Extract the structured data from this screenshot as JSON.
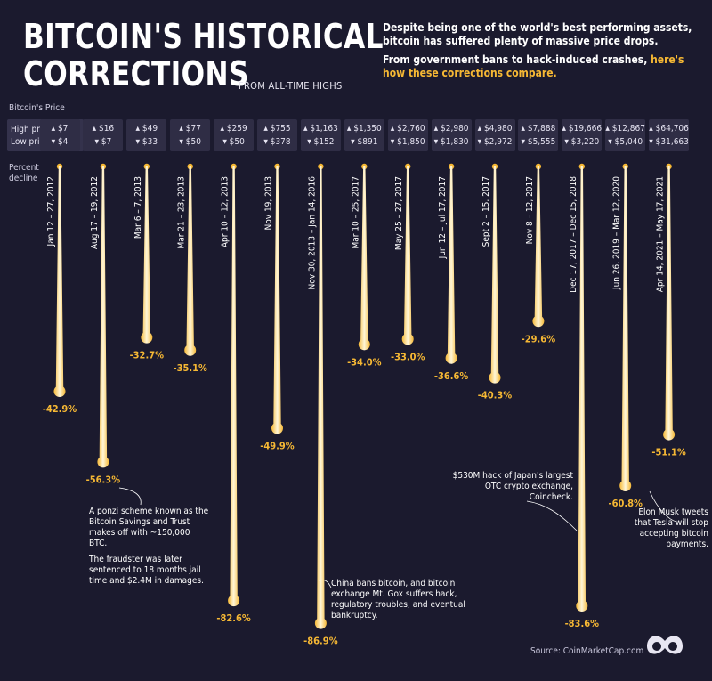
{
  "header": {
    "title_line1": "BITCOIN'S HISTORICAL",
    "title_line2": "CORRECTIONS",
    "subtitle": "FROM ALL-TIME HIGHS",
    "intro_line1": "Despite being one of the world's best performing assets, bitcoin has suffered plenty of massive price drops.",
    "intro_line2a": "From government bans to hack-induced crashes,",
    "intro_line2b": "here's how these corrections compare."
  },
  "labels": {
    "bitcoin_price": "Bitcoin's Price",
    "high_price": "High price",
    "low_price": "Low price",
    "percent": "Percent",
    "decline": "decline"
  },
  "colors": {
    "background": "#1b1a2e",
    "bar_gold": "#f6b834",
    "bar_light": "#fff6d8",
    "label_gold": "#f6b834",
    "price_box": "#2f2d45"
  },
  "chart_data": {
    "type": "bar",
    "orientation": "vertical-downward",
    "ylabel": "Percent decline",
    "ylim": [
      0,
      90
    ],
    "categories": [
      "Jan 12 – 27, 2012",
      "Aug 17 – 19, 2012",
      "Mar 6 – 7, 2013",
      "Mar 21 – 23, 2013",
      "Apr 10 – 12, 2013",
      "Nov 19, 2013",
      "Nov 30, 2013 – Jan 14, 2016",
      "Mar 10 – 25, 2017",
      "May 25 – 27, 2017",
      "Jun 12 – Jul 17, 2017",
      "Sept 2 – 15, 2017",
      "Nov 8 – 12, 2017",
      "Dec 17, 2017 – Dec 15, 2018",
      "Jun 26, 2019 – Mar 12, 2020",
      "Apr 14, 2021 – May 17, 2021"
    ],
    "values": [
      -42.9,
      -56.3,
      -32.7,
      -35.1,
      -82.6,
      -49.9,
      -86.9,
      -34.0,
      -33.0,
      -36.6,
      -40.3,
      -29.6,
      -83.6,
      -60.8,
      -51.1
    ],
    "value_labels": [
      "-42.9%",
      "-56.3%",
      "-32.7%",
      "-35.1%",
      "-82.6%",
      "-49.9%",
      "-86.9%",
      "-34.0%",
      "-33.0%",
      "-36.6%",
      "-40.3%",
      "-29.6%",
      "-83.6%",
      "-60.8%",
      "-51.1%"
    ],
    "high_price": [
      "$7",
      "$16",
      "$49",
      "$77",
      "$259",
      "$755",
      "$1,163",
      "$1,350",
      "$2,760",
      "$2,980",
      "$4,980",
      "$7,888",
      "$19,666",
      "$12,867",
      "$64,706"
    ],
    "low_price": [
      "$4",
      "$7",
      "$33",
      "$50",
      "$50",
      "$378",
      "$152",
      "$891",
      "$1,850",
      "$1,830",
      "$2,972",
      "$5,555",
      "$3,220",
      "$5,040",
      "$31,663"
    ]
  },
  "annotations": {
    "ponzi_1": "A ponzi scheme known as the Bitcoin Savings and Trust makes off with ~150,000 BTC.",
    "ponzi_2": "The fraudster was later sentenced to 18 months jail time and $2.4M in damages.",
    "gox": "China bans bitcoin, and bitcoin exchange Mt. Gox suffers hack, regulatory troubles, and eventual bankruptcy.",
    "coincheck": "$530M hack of Japan's largest OTC crypto exchange, Coincheck.",
    "musk": "Elon Musk tweets that Tesla will stop accepting bitcoin payments."
  },
  "footer": {
    "source": "Source: CoinMarketCap.com",
    "logo_icon": "visual-capitalist-logo-icon"
  }
}
